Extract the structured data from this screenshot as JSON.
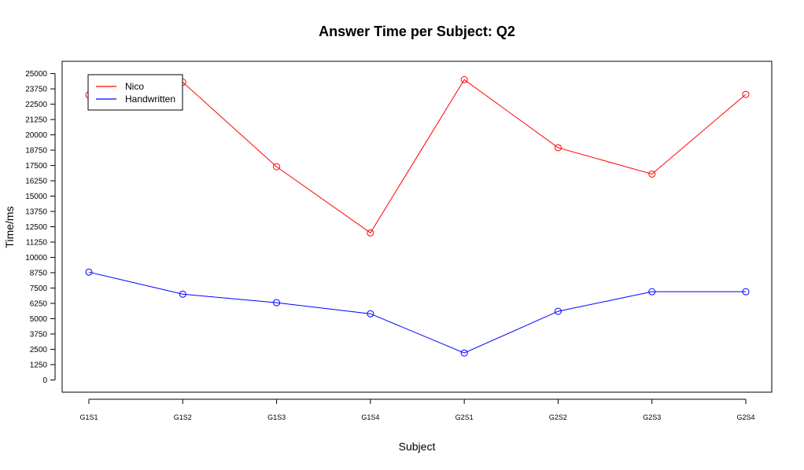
{
  "chart_data": {
    "type": "line",
    "title": "Answer Time per Subject: Q2",
    "xlabel": "Subject",
    "ylabel": "Time/ms",
    "categories": [
      "G1S1",
      "G1S2",
      "G1S3",
      "G1S4",
      "G2S1",
      "G2S2",
      "G2S3",
      "G2S4"
    ],
    "yticks": [
      0,
      1250,
      2500,
      3750,
      5000,
      6250,
      7500,
      8750,
      10000,
      11250,
      12500,
      13750,
      15000,
      16250,
      17500,
      18750,
      20000,
      21250,
      22500,
      23750,
      25000
    ],
    "ylim": [
      -1000,
      26000
    ],
    "grid": false,
    "legend_position": "top-left",
    "series": [
      {
        "name": "Nico",
        "color": "#ff0000",
        "values": [
          23250,
          24300,
          17400,
          12000,
          24500,
          18950,
          16800,
          23300
        ]
      },
      {
        "name": "Handwritten",
        "color": "#0000ff",
        "values": [
          8800,
          7000,
          6300,
          5400,
          2200,
          5600,
          7200,
          7200
        ]
      }
    ]
  }
}
